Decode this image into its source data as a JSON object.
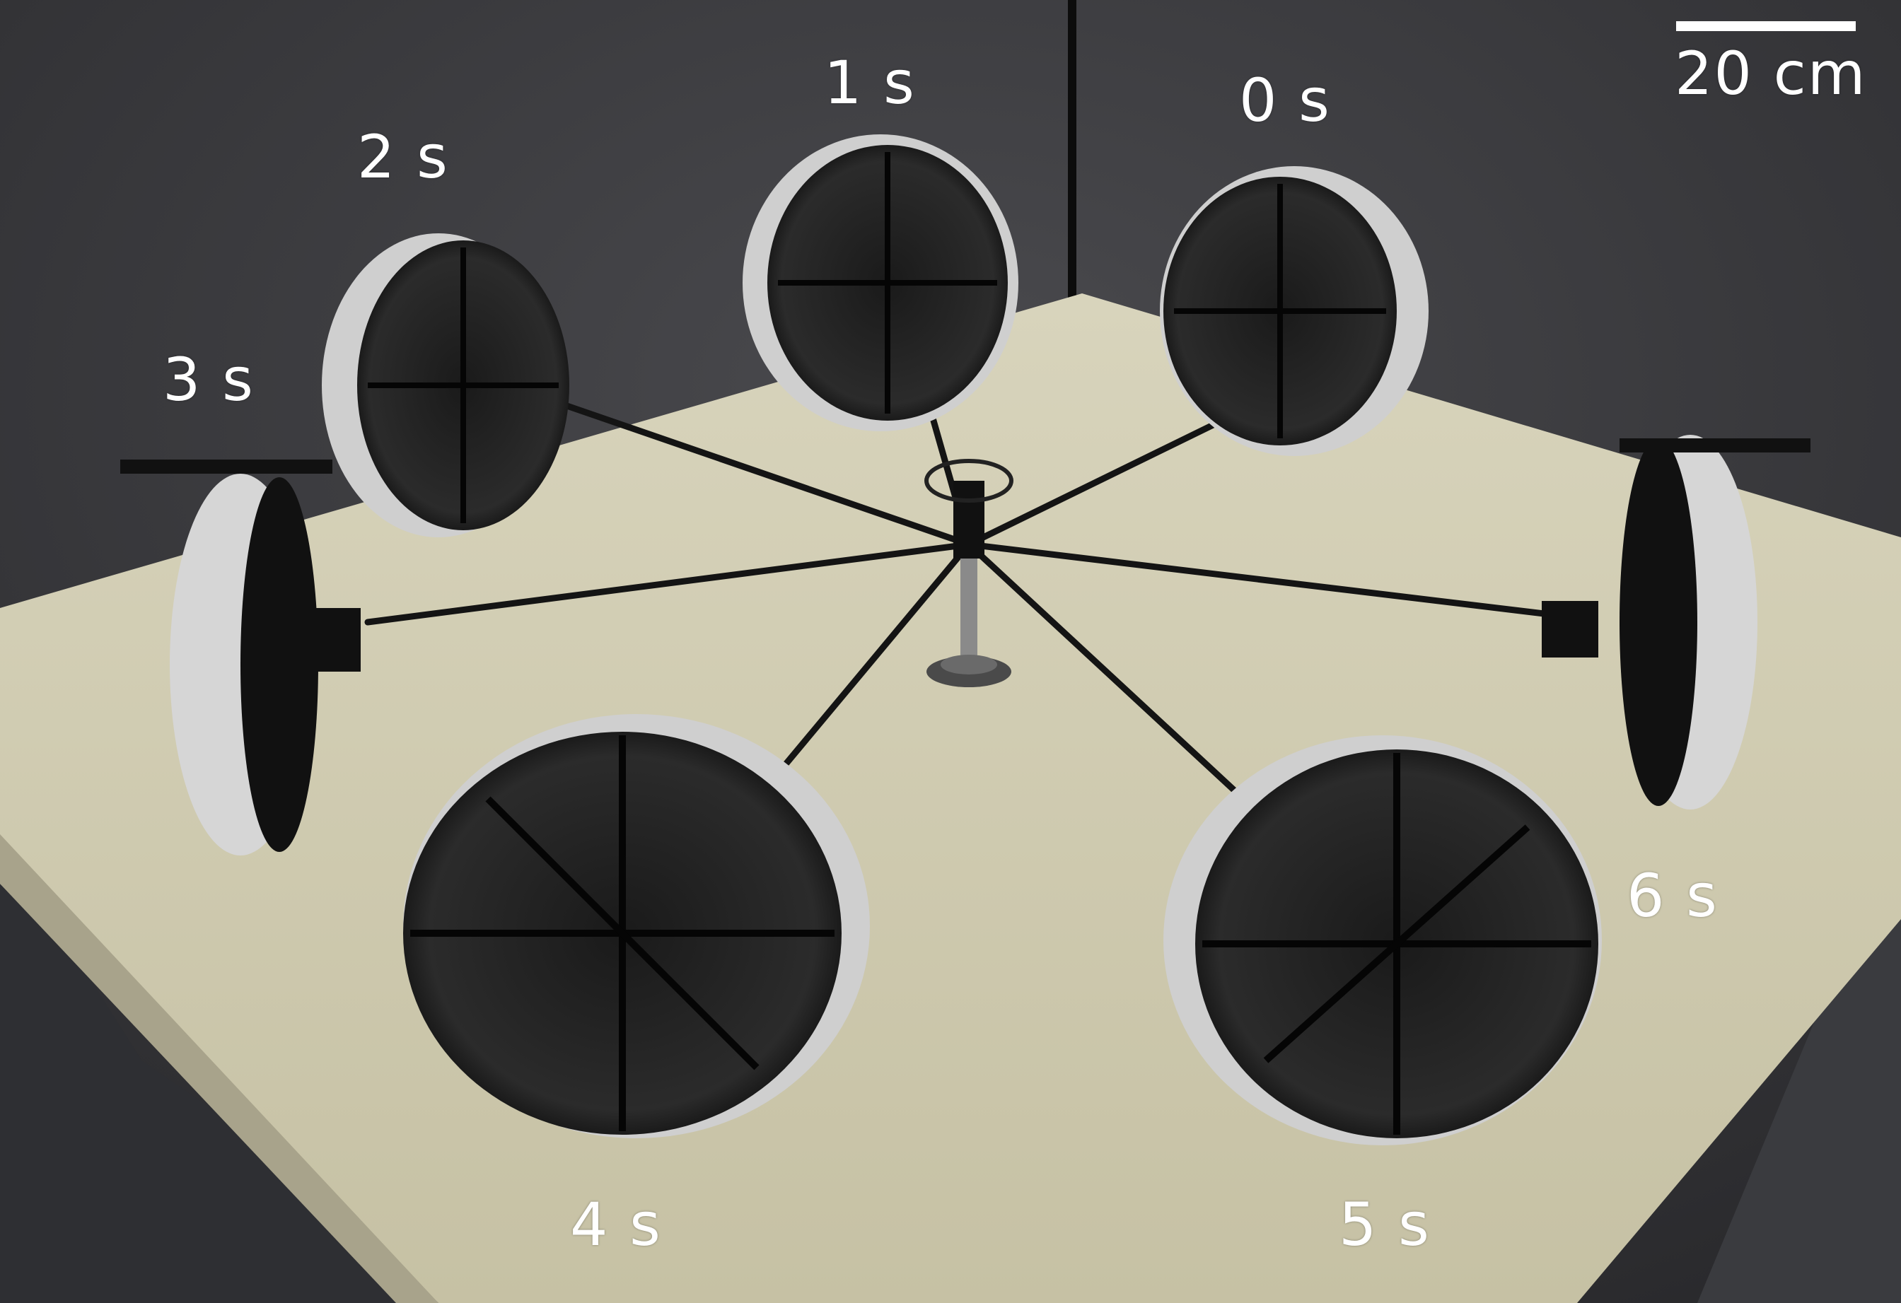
{
  "figure": {
    "scale_bar_label": "20 cm",
    "time_labels": [
      "0 s",
      "1 s",
      "2 s",
      "3 s",
      "4 s",
      "5 s",
      "6 s"
    ]
  },
  "colors": {
    "wall": "#3a3a3e",
    "platform": "#cfcbb0",
    "wheel_tread": "#d6d6d6",
    "frame": "#111111",
    "label_text": "#ffffff"
  }
}
